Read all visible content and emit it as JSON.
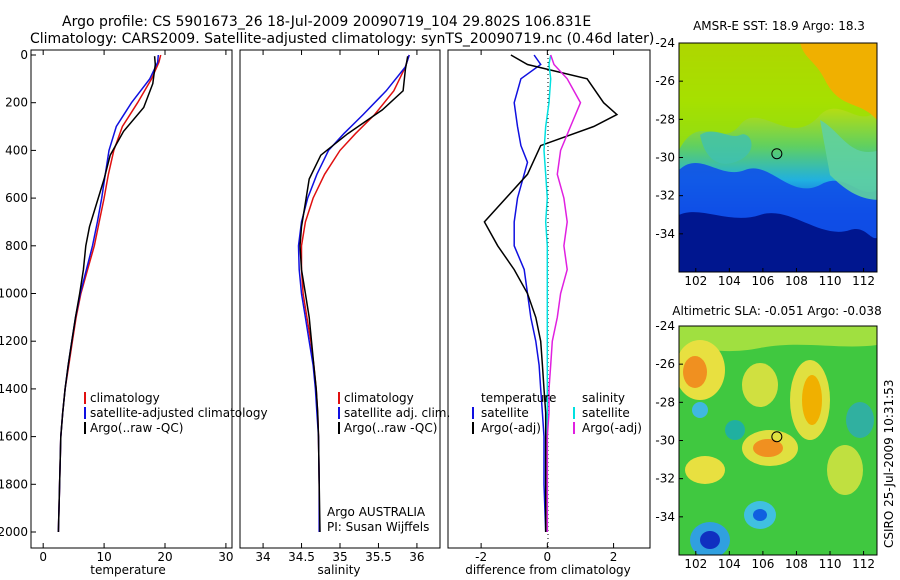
{
  "header": {
    "line1": "Argo profile: CS 5901673_26 18-Jul-2009 20090719_104 29.802S 106.831E",
    "line2": "Climatology: CARS2009. Satellite-adjusted climatology: synTS_20090719.nc (0.46d later)"
  },
  "footer_stamp": "CSIRO 25-Jul-2009 10:31:53",
  "colors": {
    "climatology": "#e01010",
    "satellite": "#1010e0",
    "argo": "#000000",
    "salinity_satellite": "#00e0e0",
    "salinity_argo": "#e020e0"
  },
  "chart_data": [
    {
      "type": "line",
      "name": "temperature-profile",
      "xlabel": "temperature",
      "ylabel": "",
      "xlim": [
        -2,
        31
      ],
      "ylim": [
        2050,
        0
      ],
      "xticks": [
        0,
        10,
        20,
        30
      ],
      "yticks": [
        0,
        200,
        400,
        600,
        800,
        1000,
        1200,
        1400,
        1600,
        1800,
        2000
      ],
      "legend": [
        "climatology",
        "satellite-adjusted climatology",
        "Argo(..raw -QC)"
      ],
      "series": [
        {
          "name": "climatology",
          "color": "#e01010",
          "x": [
            19.3,
            19.0,
            17.8,
            15.5,
            13.0,
            11.6,
            10.7,
            10.0,
            9.2,
            8.4,
            7.3,
            6.2,
            5.4,
            4.8,
            4.2,
            3.6,
            3.2,
            2.9,
            2.7,
            2.5
          ],
          "y": [
            0,
            30,
            100,
            200,
            300,
            400,
            500,
            600,
            700,
            800,
            900,
            1000,
            1100,
            1200,
            1300,
            1400,
            1500,
            1600,
            1800,
            2000
          ]
        },
        {
          "name": "satellite-adjusted climatology",
          "color": "#1010e0",
          "x": [
            18.9,
            18.8,
            17.5,
            14.5,
            12.0,
            10.8,
            10.2,
            9.6,
            8.9,
            8.1,
            7.1,
            6.1,
            5.3,
            4.7,
            4.1,
            3.6,
            3.2,
            2.9,
            2.7,
            2.5
          ],
          "y": [
            0,
            30,
            100,
            200,
            300,
            400,
            500,
            600,
            700,
            800,
            900,
            1000,
            1100,
            1200,
            1300,
            1400,
            1500,
            1600,
            1800,
            2000
          ]
        },
        {
          "name": "Argo(..raw -QC)",
          "color": "#000000",
          "x": [
            18.3,
            18.4,
            18.0,
            16.5,
            13.2,
            11.0,
            10.0,
            8.8,
            7.6,
            7.0,
            6.6,
            6.0,
            5.3,
            4.7,
            4.1,
            3.6,
            3.2,
            2.9,
            2.7,
            2.5
          ],
          "y": [
            5,
            40,
            120,
            220,
            320,
            420,
            520,
            620,
            720,
            800,
            900,
            1000,
            1100,
            1200,
            1300,
            1400,
            1500,
            1600,
            1800,
            2000
          ]
        }
      ]
    },
    {
      "type": "line",
      "name": "salinity-profile",
      "xlabel": "salinity",
      "ylabel": "",
      "xlim": [
        33.7,
        36.3
      ],
      "ylim": [
        2050,
        0
      ],
      "xticks": [
        34,
        34.5,
        35,
        35.5,
        36
      ],
      "legend": [
        "climatology",
        "satellite adj. clim.",
        "Argo(..raw -QC)"
      ],
      "annotations": [
        "Argo AUSTRALIA",
        "PI: Susan Wijffels"
      ],
      "series": [
        {
          "name": "climatology",
          "color": "#e01010",
          "x": [
            35.9,
            35.85,
            35.7,
            35.45,
            35.2,
            35.0,
            34.8,
            34.65,
            34.55,
            34.5,
            34.5,
            34.52,
            34.57,
            34.62,
            34.66,
            34.69,
            34.71,
            34.72,
            34.73,
            34.73
          ],
          "y": [
            0,
            50,
            150,
            250,
            330,
            400,
            500,
            600,
            700,
            800,
            900,
            1000,
            1100,
            1200,
            1300,
            1400,
            1500,
            1600,
            1800,
            2000
          ]
        },
        {
          "name": "satellite adj. clim.",
          "color": "#1010e0",
          "x": [
            35.9,
            35.85,
            35.6,
            35.3,
            35.05,
            34.85,
            34.7,
            34.58,
            34.5,
            34.46,
            34.47,
            34.5,
            34.55,
            34.6,
            34.65,
            34.68,
            34.7,
            34.72,
            34.73,
            34.73
          ],
          "y": [
            0,
            50,
            150,
            250,
            330,
            400,
            500,
            600,
            700,
            800,
            900,
            1000,
            1100,
            1200,
            1300,
            1400,
            1500,
            1600,
            1800,
            2000
          ]
        },
        {
          "name": "Argo(..raw -QC)",
          "color": "#000000",
          "x": [
            35.88,
            35.85,
            35.82,
            35.55,
            35.1,
            34.75,
            34.6,
            34.55,
            34.5,
            34.48,
            34.5,
            34.55,
            34.6,
            34.63,
            34.66,
            34.69,
            34.71,
            34.72,
            34.73,
            34.74
          ],
          "y": [
            5,
            60,
            150,
            230,
            330,
            420,
            520,
            620,
            720,
            800,
            900,
            1000,
            1100,
            1200,
            1300,
            1400,
            1500,
            1600,
            1800,
            2000
          ]
        }
      ]
    },
    {
      "type": "line",
      "name": "difference-profile",
      "xlabel": "difference from climatology",
      "xlim": [
        -3,
        3.1
      ],
      "ylim": [
        2050,
        0
      ],
      "xticks": [
        -2,
        0,
        2
      ],
      "legend_temperature": {
        "title": "temperature",
        "items": [
          "satellite",
          "Argo(-adj)"
        ]
      },
      "legend_salinity": {
        "title": "salinity",
        "items": [
          "satellite",
          "Argo(-adj)"
        ]
      },
      "series": [
        {
          "name": "temperature satellite",
          "color": "#1010e0",
          "x": [
            -0.4,
            -0.2,
            -0.8,
            -1.0,
            -0.9,
            -0.8,
            -0.6,
            -0.9,
            -1.0,
            -1.0,
            -0.7,
            -0.6,
            -0.5,
            -0.35,
            -0.25,
            -0.2,
            -0.15,
            -0.1,
            -0.1,
            -0.05
          ],
          "y": [
            0,
            40,
            100,
            200,
            300,
            380,
            450,
            600,
            700,
            800,
            900,
            1000,
            1100,
            1200,
            1300,
            1400,
            1500,
            1600,
            1800,
            2000
          ]
        },
        {
          "name": "temperature Argo(-adj)",
          "color": "#000000",
          "x": [
            -1.1,
            -0.6,
            1.2,
            1.7,
            2.1,
            1.4,
            -0.2,
            -0.6,
            -1.9,
            -1.5,
            -1.0,
            -0.6,
            -0.35,
            -0.2,
            -0.15,
            -0.1,
            -0.05,
            -0.05,
            -0.05,
            -0.05
          ],
          "y": [
            0,
            40,
            100,
            200,
            250,
            300,
            380,
            500,
            700,
            800,
            900,
            1000,
            1100,
            1200,
            1300,
            1400,
            1500,
            1600,
            1800,
            2000
          ]
        },
        {
          "name": "salinity satellite",
          "color": "#00e0e0",
          "x": [
            0.1,
            0.05,
            0.1,
            0.05,
            -0.05,
            -0.1,
            -0.05,
            0.0,
            -0.05,
            0.0,
            0.0,
            0.0,
            0.0,
            0.0,
            0.0,
            0.0,
            0.0,
            0.0,
            0.0,
            0.0
          ],
          "y": [
            0,
            40,
            100,
            200,
            300,
            400,
            500,
            600,
            700,
            800,
            900,
            1000,
            1100,
            1200,
            1300,
            1400,
            1500,
            1600,
            1800,
            2000
          ]
        },
        {
          "name": "salinity Argo(-adj)",
          "color": "#e020e0",
          "x": [
            0.1,
            0.2,
            0.6,
            1.0,
            0.7,
            0.4,
            0.3,
            0.5,
            0.6,
            0.5,
            0.6,
            0.4,
            0.3,
            0.15,
            0.1,
            0.05,
            0.05,
            0.0,
            0.0,
            0.0
          ],
          "y": [
            0,
            40,
            100,
            200,
            300,
            400,
            500,
            600,
            700,
            800,
            900,
            1000,
            1100,
            1200,
            1300,
            1400,
            1500,
            1600,
            1800,
            2000
          ]
        }
      ]
    },
    {
      "type": "heatmap",
      "name": "sst-map",
      "title": "AMSR-E SST: 18.9  Argo: 18.3",
      "xlim": [
        101,
        112.8
      ],
      "ylim": [
        -36,
        -24
      ],
      "xticks": [
        102,
        104,
        106,
        108,
        110,
        112
      ],
      "yticks": [
        -24,
        -26,
        -28,
        -30,
        -32,
        -34
      ],
      "marker": {
        "lon": 106.831,
        "lat": -29.802
      }
    },
    {
      "type": "heatmap",
      "name": "sla-map",
      "title": "Altimetric SLA: -0.051  Argo: -0.038",
      "xlim": [
        101,
        112.8
      ],
      "ylim": [
        -36,
        -24
      ],
      "xticks": [
        102,
        104,
        106,
        108,
        110,
        112
      ],
      "yticks": [
        -24,
        -26,
        -28,
        -30,
        -32,
        -34
      ],
      "marker": {
        "lon": 106.831,
        "lat": -29.802
      }
    }
  ]
}
